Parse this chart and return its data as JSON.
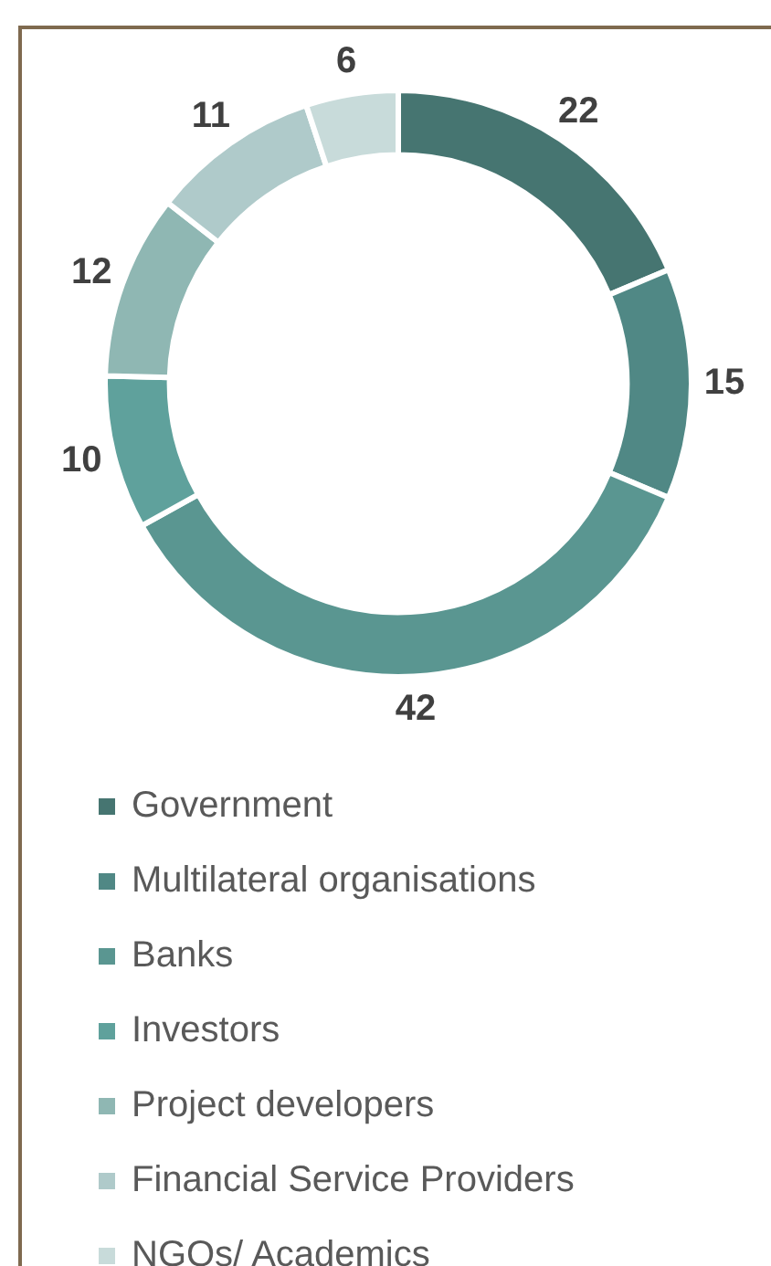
{
  "chart_data": {
    "type": "donut",
    "categories": [
      "Government",
      "Multilateral organisations",
      "Banks",
      "Investors",
      "Project developers",
      "Financial Service Providers",
      "NGOs/ Academics"
    ],
    "values": [
      22,
      15,
      42,
      10,
      12,
      11,
      6
    ],
    "colors": [
      "#467571",
      "#508885",
      "#5a9691",
      "#5fa19c",
      "#8fb7b3",
      "#afcaca",
      "#c8dbda"
    ],
    "data_labels": true,
    "legend": "bottom"
  }
}
